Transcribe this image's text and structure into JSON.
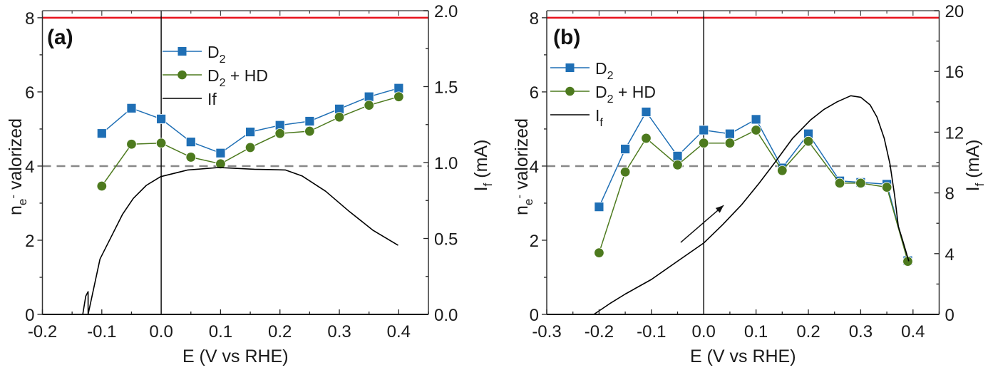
{
  "chart_data": [
    {
      "type": "line",
      "panel_label": "(a)",
      "xlabel": "E (V vs RHE)",
      "ylabel": "n_e- valorized",
      "ylabel_main": "n",
      "ylabel_sub": "e",
      "ylabel_sup": "-",
      "ylabel_rest": " valorized",
      "y2label_main": "I",
      "y2label_sub": "f",
      "y2label_rest": " (mA)",
      "xlim": [
        -0.2,
        0.45
      ],
      "ylim": [
        0,
        8.19
      ],
      "y2lim": [
        0,
        2.0
      ],
      "xticks": [
        -0.2,
        -0.1,
        0.0,
        0.1,
        0.2,
        0.3,
        0.4
      ],
      "xtick_labels": [
        "-0.2",
        "-0.1",
        "0.0",
        "0.1",
        "0.2",
        "0.3",
        "0.4"
      ],
      "yticks": [
        0,
        2,
        4,
        6,
        8
      ],
      "ytick_labels": [
        "0",
        "2",
        "4",
        "6",
        "8"
      ],
      "y2ticks": [
        0.0,
        0.5,
        1.0,
        1.5,
        2.0
      ],
      "y2tick_labels": [
        "0.0",
        "0.5",
        "1.0",
        "1.5",
        "2.0"
      ],
      "reference_lines": {
        "red_hline": 8,
        "dashed_hline": 4,
        "vline": 0.0
      },
      "legend": {
        "placement": "top-center",
        "entries": [
          {
            "label_main": "D",
            "label_sub": "2",
            "label_rest": ""
          },
          {
            "label_main": "D",
            "label_sub": "2",
            "label_rest": " + HD"
          },
          {
            "label_main": "If",
            "label_sub": "",
            "label_rest": ""
          }
        ]
      },
      "series": [
        {
          "name": "D2",
          "axis": "left",
          "color": "#1f6fb5",
          "marker": "square",
          "x": [
            -0.1,
            -0.05,
            0.0,
            0.05,
            0.1,
            0.15,
            0.2,
            0.25,
            0.3,
            0.35,
            0.4
          ],
          "y": [
            4.88,
            5.56,
            5.27,
            4.65,
            4.35,
            4.92,
            5.1,
            5.21,
            5.54,
            5.87,
            6.1
          ]
        },
        {
          "name": "D2 + HD",
          "axis": "left",
          "color": "#4d7a1e",
          "marker": "circle",
          "x": [
            -0.1,
            -0.05,
            0.0,
            0.05,
            0.1,
            0.15,
            0.2,
            0.25,
            0.3,
            0.35,
            0.4
          ],
          "y": [
            3.46,
            4.59,
            4.62,
            4.24,
            4.06,
            4.5,
            4.88,
            4.94,
            5.32,
            5.64,
            5.87
          ]
        },
        {
          "name": "If",
          "axis": "right",
          "color": "#000000",
          "marker": "none",
          "x": [
            -0.132,
            -0.127,
            -0.123,
            -0.123,
            -0.103,
            -0.083,
            -0.065,
            -0.047,
            -0.025,
            -0.001,
            0.045,
            0.097,
            0.157,
            0.209,
            0.237,
            0.277,
            0.317,
            0.357,
            0.399
          ],
          "y": [
            0.0,
            0.12,
            0.15,
            0.0,
            0.365,
            0.52,
            0.66,
            0.764,
            0.85,
            0.907,
            0.951,
            0.967,
            0.956,
            0.951,
            0.912,
            0.811,
            0.677,
            0.553,
            0.455
          ]
        }
      ]
    },
    {
      "type": "line",
      "panel_label": "(b)",
      "xlabel": "E (V vs RHE)",
      "ylabel": "n_e- valorized",
      "ylabel_main": "n",
      "ylabel_sub": "e",
      "ylabel_sup": "-",
      "ylabel_rest": " valorized",
      "y2label_main": "I",
      "y2label_sub": "f",
      "y2label_rest": " (mA)",
      "xlim": [
        -0.3,
        0.45
      ],
      "ylim": [
        0,
        8.19
      ],
      "y2lim": [
        0,
        20
      ],
      "xticks": [
        -0.3,
        -0.2,
        -0.1,
        0.0,
        0.1,
        0.2,
        0.3,
        0.4
      ],
      "xtick_labels": [
        "-0.3",
        "-0.2",
        "-0.1",
        "0.0",
        "0.1",
        "0.2",
        "0.3",
        "0.4"
      ],
      "yticks": [
        0,
        2,
        4,
        6,
        8
      ],
      "ytick_labels": [
        "0",
        "2",
        "4",
        "6",
        "8"
      ],
      "y2ticks": [
        0,
        4,
        8,
        12,
        16,
        20
      ],
      "y2tick_labels": [
        "0",
        "4",
        "8",
        "12",
        "16",
        "20"
      ],
      "reference_lines": {
        "red_hline": 8,
        "dashed_hline": 4,
        "vline": 0.0
      },
      "annotation": {
        "type": "arrow",
        "from": [
          -0.044,
          1.94
        ],
        "to": [
          0.038,
          2.94
        ],
        "meaning": "scan direction"
      },
      "legend": {
        "placement": "top-left",
        "entries": [
          {
            "label_main": "D",
            "label_sub": "2",
            "label_rest": ""
          },
          {
            "label_main": "D",
            "label_sub": "2",
            "label_rest": " + HD"
          },
          {
            "label_main": "I",
            "label_sub": "f",
            "label_rest": ""
          }
        ]
      },
      "series": [
        {
          "name": "D2",
          "axis": "left",
          "color": "#1f6fb5",
          "marker": "square",
          "x": [
            -0.2,
            -0.15,
            -0.11,
            -0.05,
            0.0,
            0.05,
            0.1,
            0.15,
            0.2,
            0.26,
            0.3,
            0.35,
            0.39
          ],
          "y": [
            2.9,
            4.46,
            5.46,
            4.27,
            4.97,
            4.87,
            5.26,
            3.95,
            4.87,
            3.6,
            3.56,
            3.51,
            1.45
          ]
        },
        {
          "name": "D2 + HD",
          "axis": "left",
          "color": "#4d7a1e",
          "marker": "circle",
          "x": [
            -0.2,
            -0.15,
            -0.11,
            -0.05,
            0.0,
            0.05,
            0.1,
            0.15,
            0.2,
            0.26,
            0.3,
            0.35,
            0.39
          ],
          "y": [
            1.66,
            3.84,
            4.75,
            4.03,
            4.62,
            4.62,
            4.97,
            3.88,
            4.67,
            3.54,
            3.54,
            3.43,
            1.43
          ]
        },
        {
          "name": "If",
          "axis": "right",
          "color": "#000000",
          "marker": "none",
          "x": [
            -0.21,
            -0.18,
            -0.15,
            -0.1,
            -0.05,
            0.0,
            0.036,
            0.072,
            0.105,
            0.136,
            0.17,
            0.204,
            0.23,
            0.255,
            0.281,
            0.3,
            0.318,
            0.331,
            0.345,
            0.356,
            0.365,
            0.372,
            0.38,
            0.386,
            0.392
          ],
          "y": [
            0.0,
            0.7,
            1.34,
            2.3,
            3.5,
            4.7,
            5.9,
            7.2,
            8.6,
            10.0,
            11.6,
            12.8,
            13.5,
            14.0,
            14.4,
            14.3,
            13.8,
            13.0,
            11.6,
            9.9,
            7.8,
            5.8,
            4.9,
            4.2,
            3.5
          ]
        }
      ]
    }
  ]
}
